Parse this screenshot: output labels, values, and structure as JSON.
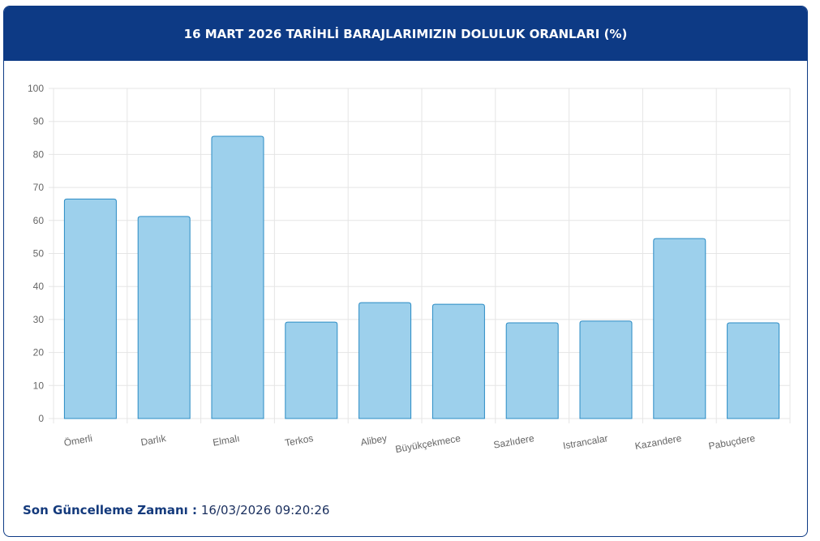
{
  "chart_data": {
    "type": "bar",
    "title": "16 MART 2026 TARİHLİ BARAJLARIMIZIN DOLULUK ORANLARI (%)",
    "categories": [
      "Ömerli",
      "Darlık",
      "Elmalı",
      "Terkos",
      "Alibey",
      "Büyükçekmece",
      "Sazlıdere",
      "Istrancalar",
      "Kazandere",
      "Pabuçdere"
    ],
    "values": [
      66.5,
      61.2,
      85.5,
      29.2,
      35.1,
      34.6,
      29.0,
      29.5,
      54.5,
      29.0
    ],
    "color": "#9dd0ec",
    "border_color": "#2a8bc4",
    "ylim": [
      0,
      100
    ],
    "yticks": [
      0,
      10,
      20,
      30,
      40,
      50,
      60,
      70,
      80,
      90,
      100
    ],
    "grid": true
  },
  "footer": {
    "label": "Son Güncelleme Zamanı :",
    "value": "16/03/2026 09:20:26"
  }
}
